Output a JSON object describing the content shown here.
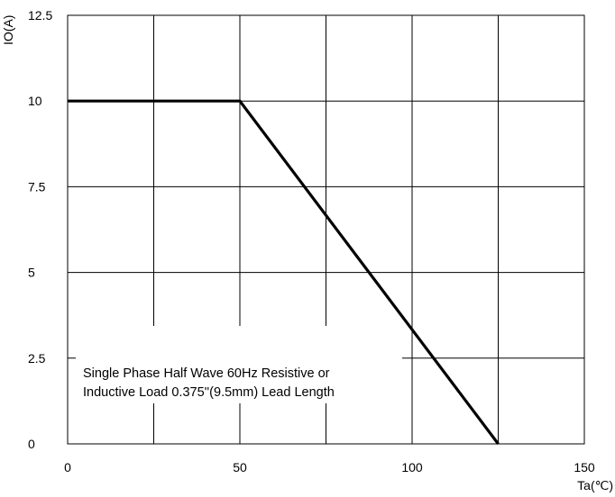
{
  "chart_data": {
    "type": "line",
    "xlabel": "Ta(℃)",
    "ylabel": "IO(A)",
    "xlim": [
      0,
      150
    ],
    "ylim": [
      0,
      12.5
    ],
    "x_ticks": [
      "0",
      "50",
      "100",
      "150"
    ],
    "y_ticks": [
      "0",
      "2.5",
      "5",
      "7.5",
      "10",
      "12.5"
    ],
    "x_tick_values": [
      0,
      50,
      100,
      150
    ],
    "y_tick_values": [
      0,
      2.5,
      5,
      7.5,
      10,
      12.5
    ],
    "grid": true,
    "series": [
      {
        "x": [
          0,
          50,
          125
        ],
        "y": [
          10,
          10,
          0
        ]
      }
    ],
    "annotation": {
      "line1": "Single Phase Half Wave 60Hz  Resistive or",
      "line2": "Inductive Load 0.375''(9.5mm) Lead Length"
    }
  }
}
